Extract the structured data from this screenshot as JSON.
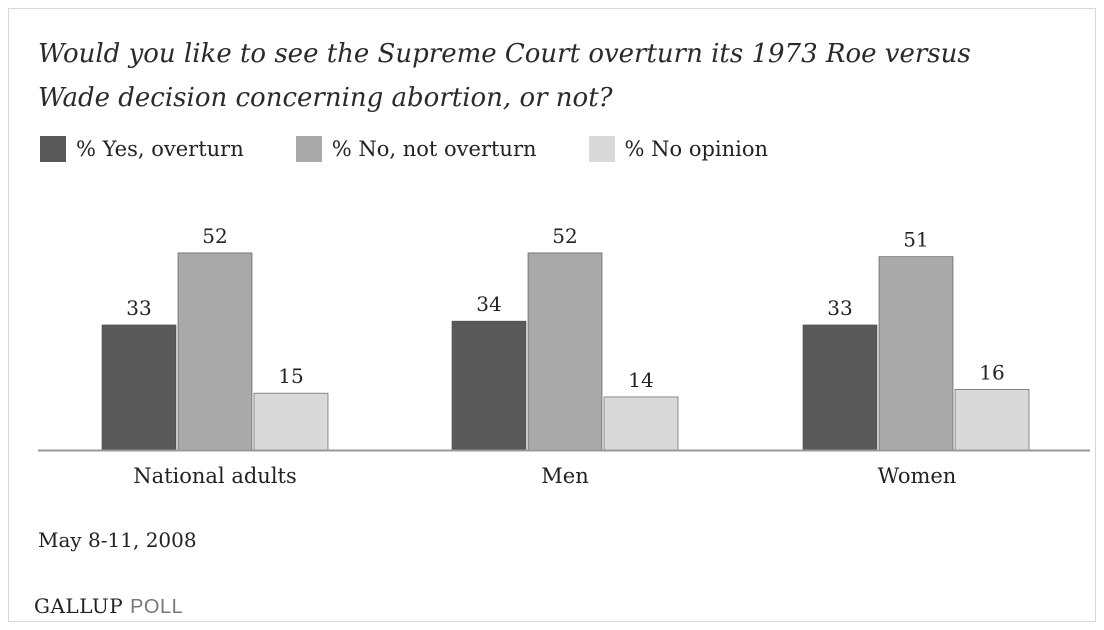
{
  "title": "Would you like to see the Supreme Court overturn its 1973 Roe versus Wade decision concerning abortion, or not?",
  "date": "May 8-11, 2008",
  "logo": {
    "primary": "GALLUP",
    "secondary": "POLL"
  },
  "colors": {
    "yes": "#595959",
    "no": "#a9a9a9",
    "noop": "#d9d9d9",
    "baseline": "#999999"
  },
  "chart_data": {
    "type": "bar",
    "title": "Would you like to see the Supreme Court overturn its 1973 Roe versus Wade decision concerning abortion, or not?",
    "xlabel": "",
    "ylabel": "",
    "ylim": [
      0,
      60
    ],
    "grid": false,
    "legend_position": "top-left",
    "categories": [
      "National adults",
      "Men",
      "Women"
    ],
    "series": [
      {
        "name": "% Yes, overturn",
        "values": [
          33,
          34,
          33
        ]
      },
      {
        "name": "% No, not overturn",
        "values": [
          52,
          52,
          51
        ]
      },
      {
        "name": "% No opinion",
        "values": [
          15,
          14,
          16
        ]
      }
    ]
  }
}
